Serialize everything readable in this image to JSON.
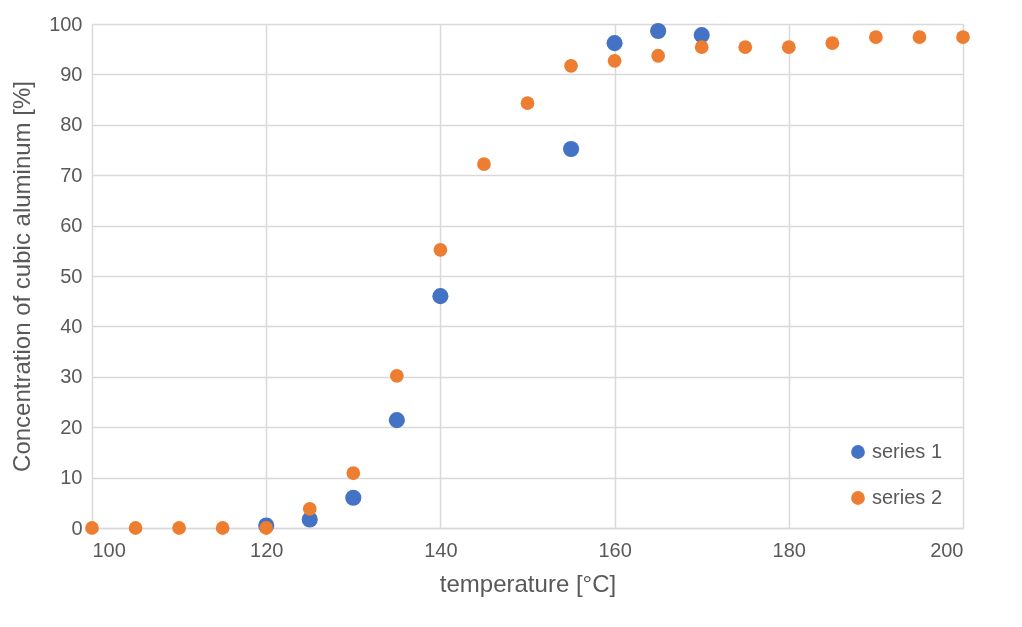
{
  "chart_data": {
    "type": "scatter",
    "xlabel": "temperature [°C]",
    "ylabel": "Concentration of cubic aluminum [%]",
    "xlim": [
      100,
      200
    ],
    "xticks": [
      100,
      120,
      140,
      160,
      180,
      200
    ],
    "ylim": [
      0,
      100
    ],
    "yticks": [
      0,
      10,
      20,
      30,
      40,
      50,
      60,
      70,
      80,
      90,
      100
    ],
    "grid": true,
    "legend": "bottom right",
    "marker": "circle",
    "series": [
      {
        "name": "series 1",
        "color": "#4472c4",
        "x": [
          120,
          125,
          130,
          135,
          140,
          155,
          160,
          165,
          170
        ],
        "values": [
          0.5,
          1.7,
          6,
          21.4,
          46,
          75.2,
          96.2,
          98.6,
          97.8
        ]
      },
      {
        "name": "series 2",
        "color": "#ed7d31",
        "x": [
          100,
          105,
          110,
          115,
          120,
          125,
          130,
          135,
          140,
          145,
          150,
          155,
          160,
          165,
          170,
          175,
          180,
          185,
          190,
          195,
          200
        ],
        "values": [
          0,
          0,
          0,
          0,
          0,
          3.8,
          10.9,
          30.2,
          55.2,
          72.2,
          84.3,
          91.7,
          92.7,
          93.7,
          95.4,
          95.4,
          95.4,
          96.2,
          97.4,
          97.4,
          97.4
        ]
      }
    ]
  }
}
